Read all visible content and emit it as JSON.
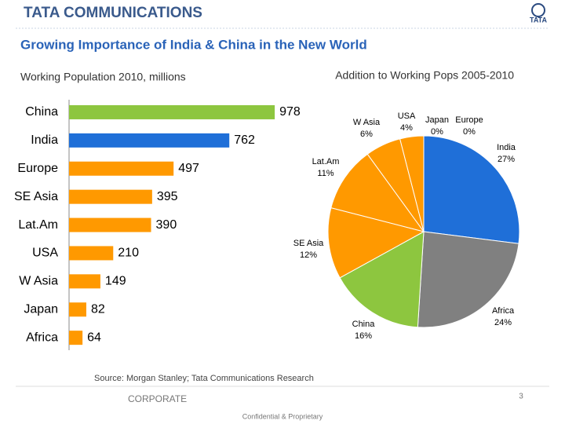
{
  "header": {
    "brand": "TATA COMMUNICATIONS",
    "logo": "TATA",
    "title": "Growing Importance of India & China in the New World"
  },
  "chart_data": [
    {
      "type": "hbar",
      "title": "Working Population 2010, millions",
      "categories": [
        "China",
        "India",
        "Europe",
        "SE Asia",
        "Lat.Am",
        "USA",
        "W Asia",
        "Japan",
        "Africa"
      ],
      "values": [
        978,
        762,
        497,
        395,
        390,
        210,
        149,
        82,
        64
      ],
      "colors": [
        "#8dc63f",
        "#1f6fd8",
        "#ff9900",
        "#ff9900",
        "#ff9900",
        "#ff9900",
        "#ff9900",
        "#ff9900",
        "#ff9900"
      ],
      "xlim": [
        0,
        1000
      ]
    },
    {
      "type": "pie",
      "title": "Addition to Working Pops 2005-2010",
      "categories": [
        "India",
        "Africa",
        "China",
        "SE Asia",
        "Lat.Am",
        "W Asia",
        "USA",
        "Japan",
        "Europe"
      ],
      "values": [
        27,
        24,
        16,
        12,
        11,
        6,
        4,
        0,
        0
      ],
      "value_labels": [
        "27%",
        "24%",
        "16%",
        "12%",
        "11%",
        "6%",
        "4%",
        "0%",
        "0%"
      ],
      "colors": [
        "#1f6fd8",
        "#808080",
        "#8dc63f",
        "#ff9900",
        "#ff9900",
        "#ff9900",
        "#ff9900",
        "#ff9900",
        "#ff9900"
      ]
    }
  ],
  "footer": {
    "source": "Source: Morgan Stanley; Tata Communications Research",
    "section": "CORPORATE",
    "confidential": "Confidential & Proprietary",
    "page": "3"
  }
}
